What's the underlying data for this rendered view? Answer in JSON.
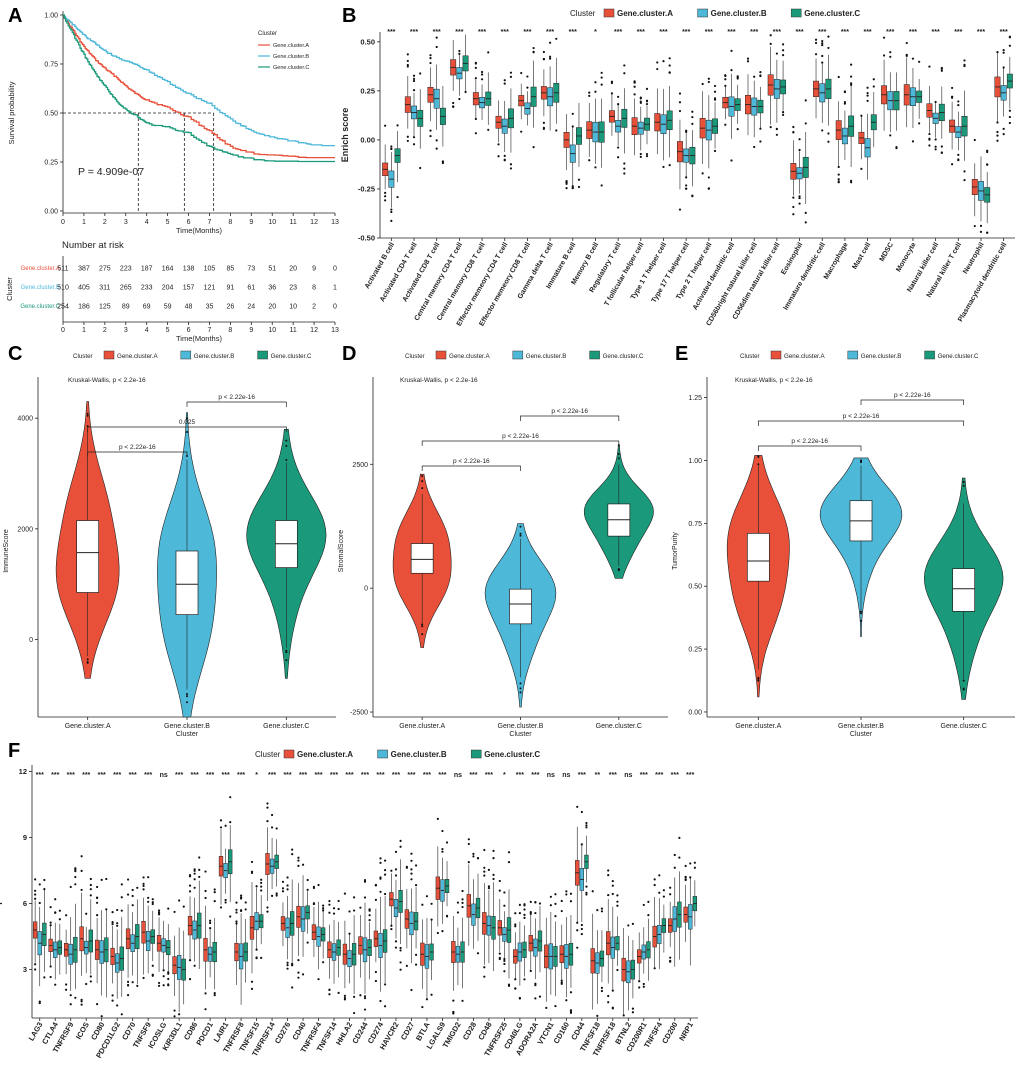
{
  "colors": {
    "A": "#e8503a",
    "B": "#4db8d8",
    "C": "#1a9a7a"
  },
  "chart_data": [
    {
      "id": "A",
      "type": "line",
      "panel_label": "A",
      "ylabel": "Survival probability",
      "xlabel": "Time(Months)",
      "xlim": [
        0,
        13
      ],
      "ylim": [
        0,
        1
      ],
      "x_ticks": [
        "0",
        "1",
        "2",
        "3",
        "4",
        "5",
        "6",
        "7",
        "8",
        "9",
        "10",
        "11",
        "12",
        "13"
      ],
      "y_ticks": [
        "0.00",
        "0.25",
        "0.50",
        "0.75",
        "1.00"
      ],
      "legend_title": "Cluster",
      "legend": [
        "Gene.cluster.A",
        "Gene.cluster.B",
        "Gene.cluster.C"
      ],
      "pvalue": "P = 4.909e-07",
      "medians": [
        5.8,
        7.2,
        3.6
      ],
      "series": [
        {
          "name": "Gene.cluster.A",
          "x": [
            0,
            0.5,
            1,
            1.5,
            2,
            2.5,
            3,
            3.5,
            4,
            5,
            6,
            7,
            8,
            9,
            10,
            11,
            12,
            13
          ],
          "y": [
            1,
            0.92,
            0.84,
            0.78,
            0.73,
            0.69,
            0.64,
            0.6,
            0.57,
            0.53,
            0.48,
            0.41,
            0.33,
            0.3,
            0.29,
            0.28,
            0.28,
            0.28
          ]
        },
        {
          "name": "Gene.cluster.B",
          "x": [
            0,
            0.5,
            1,
            1.5,
            2,
            2.5,
            3,
            3.5,
            4,
            5,
            6,
            7,
            8,
            9,
            10,
            11,
            12,
            13
          ],
          "y": [
            1,
            0.95,
            0.9,
            0.86,
            0.82,
            0.79,
            0.77,
            0.75,
            0.72,
            0.66,
            0.6,
            0.55,
            0.47,
            0.41,
            0.38,
            0.36,
            0.34,
            0.34
          ]
        },
        {
          "name": "Gene.cluster.C",
          "x": [
            0,
            0.5,
            1,
            1.5,
            2,
            2.5,
            3,
            3.5,
            4,
            5,
            6,
            7,
            8,
            9,
            10,
            11,
            12,
            13
          ],
          "y": [
            1,
            0.9,
            0.8,
            0.71,
            0.64,
            0.57,
            0.52,
            0.49,
            0.45,
            0.43,
            0.4,
            0.33,
            0.29,
            0.27,
            0.26,
            0.26,
            0.26,
            0.26
          ]
        }
      ],
      "risk_table": {
        "title": "Number at risk",
        "ylabel": "Cluster",
        "xlabel": "Time(Months)",
        "rows": [
          {
            "name": "Gene.cluster.A",
            "values": [
              "511",
              "387",
              "275",
              "223",
              "187",
              "164",
              "138",
              "105",
              "85",
              "73",
              "51",
              "20",
              "9",
              "0"
            ]
          },
          {
            "name": "Gene.cluster.B",
            "values": [
              "510",
              "405",
              "311",
              "265",
              "233",
              "204",
              "157",
              "121",
              "91",
              "61",
              "36",
              "23",
              "8",
              "1"
            ]
          },
          {
            "name": "Gene.cluster.C",
            "values": [
              "254",
              "186",
              "125",
              "89",
              "69",
              "59",
              "48",
              "35",
              "26",
              "24",
              "20",
              "10",
              "2",
              "0"
            ]
          }
        ]
      }
    },
    {
      "id": "B",
      "type": "box",
      "panel_label": "B",
      "ylabel": "Enrich score",
      "ylim": [
        -0.5,
        0.55
      ],
      "y_ticks": [
        "-0.50",
        "-0.25",
        "0.00",
        "0.25",
        "0.50"
      ],
      "y_tick_values": [
        -0.5,
        -0.25,
        0,
        0.25,
        0.5
      ],
      "legend_title": "Cluster",
      "legend": [
        "Gene.cluster.A",
        "Gene.cluster.B",
        "Gene.cluster.C"
      ],
      "categories": [
        "Activated B cell",
        "Activated CD4 T cell",
        "Activated CD8 T cell",
        "Central memory CD4 T cell",
        "Central memory CD8 T cell",
        "Effector memeory CD4 T cell",
        "Effector memeory CD8 T cell",
        "Gamma delta T cell",
        "Immature  B cell",
        "Memory B cell",
        "Regulatory T cell",
        "T follicular helper cell",
        "Type 1 T helper cell",
        "Type 17 T helper cell",
        "Type 2 T helper cell",
        "Activated dendritic cell",
        "CD56bright natural killer cell",
        "CD56dim natural killer cell",
        "Eosinophil",
        "Immature dendritic cell",
        "Macrophage",
        "Mast cell",
        "MDSC",
        "Monocyte",
        "Natural killer cell",
        "Natural killer T cell",
        "Neutrophil",
        "Plasmacytoid dendritic cell"
      ],
      "significance": [
        "***",
        "***",
        "***",
        "***",
        "***",
        "***",
        "***",
        "***",
        "***",
        "*",
        "***",
        "***",
        "***",
        "***",
        "***",
        "***",
        "***",
        "***",
        "***",
        "***",
        "***",
        "***",
        "***",
        "***",
        "***",
        "***",
        "***",
        "***"
      ],
      "medians_A": [
        -0.15,
        0.18,
        0.23,
        0.37,
        0.21,
        0.09,
        0.2,
        0.24,
        0.0,
        0.05,
        0.12,
        0.07,
        0.09,
        -0.06,
        0.06,
        0.19,
        0.18,
        0.28,
        -0.16,
        0.26,
        0.05,
        0.01,
        0.23,
        0.23,
        0.15,
        0.07,
        -0.24,
        0.27
      ],
      "medians_B": [
        -0.2,
        0.14,
        0.21,
        0.34,
        0.19,
        0.07,
        0.16,
        0.22,
        -0.07,
        0.04,
        0.07,
        0.06,
        0.08,
        -0.08,
        0.05,
        0.17,
        0.17,
        0.26,
        -0.17,
        0.24,
        0.02,
        -0.04,
        0.2,
        0.22,
        0.11,
        0.04,
        -0.26,
        0.24
      ],
      "medians_C": [
        -0.08,
        0.11,
        0.12,
        0.39,
        0.21,
        0.11,
        0.22,
        0.24,
        0.02,
        0.04,
        0.11,
        0.08,
        0.1,
        -0.08,
        0.07,
        0.18,
        0.17,
        0.27,
        -0.14,
        0.26,
        0.07,
        0.09,
        0.2,
        0.22,
        0.14,
        0.07,
        -0.28,
        0.3
      ]
    },
    {
      "id": "C",
      "type": "violin",
      "panel_label": "C",
      "ylabel": "ImmuneScore",
      "xlabel": "Cluster",
      "ylim": [
        -1400,
        4600
      ],
      "y_ticks": [
        "0",
        "2000",
        "4000"
      ],
      "y_tick_values": [
        0,
        2000,
        4000
      ],
      "legend_title": "Cluster",
      "legend": [
        "Gene.cluster.A",
        "Gene.cluster.B",
        "Gene.cluster.C"
      ],
      "categories": [
        "Gene.cluster.A",
        "Gene.cluster.B",
        "Gene.cluster.C"
      ],
      "test": "Kruskal-Wallis, p < 2.2e-16",
      "comparisons": [
        "p < 2.22e-16",
        "0.025",
        "p < 2.22e-16"
      ],
      "violins": [
        {
          "name": "Gene.cluster.A",
          "min": -700,
          "max": 4300,
          "q1": 850,
          "median": 1570,
          "q3": 2150,
          "wlo": -300,
          "whi": 3800
        },
        {
          "name": "Gene.cluster.B",
          "min": -1400,
          "max": 4100,
          "q1": 450,
          "median": 1000,
          "q3": 1600,
          "wlo": -900,
          "whi": 3250
        },
        {
          "name": "Gene.cluster.C",
          "min": -700,
          "max": 3800,
          "q1": 1300,
          "median": 1730,
          "q3": 2150,
          "wlo": -150,
          "whi": 3200
        }
      ]
    },
    {
      "id": "D",
      "type": "violin",
      "panel_label": "D",
      "ylabel": "StromalScore",
      "xlabel": "Cluster",
      "ylim": [
        -2600,
        4100
      ],
      "y_ticks": [
        "-2500",
        "0",
        "2500"
      ],
      "y_tick_values": [
        -2500,
        0,
        2500
      ],
      "legend_title": "Cluster",
      "legend": [
        "Gene.cluster.A",
        "Gene.cluster.B",
        "Gene.cluster.C"
      ],
      "categories": [
        "Gene.cluster.A",
        "Gene.cluster.B",
        "Gene.cluster.C"
      ],
      "test": "Kruskal-Wallis, p < 2.2e-16",
      "comparisons": [
        "p < 2.22e-16",
        "p < 2.22e-16",
        "p < 2.22e-16"
      ],
      "violins": [
        {
          "name": "Gene.cluster.A",
          "min": -1200,
          "max": 2300,
          "q1": 300,
          "median": 580,
          "q3": 900,
          "wlo": -700,
          "whi": 1900
        },
        {
          "name": "Gene.cluster.B",
          "min": -2400,
          "max": 1300,
          "q1": -720,
          "median": -320,
          "q3": -20,
          "wlo": -1800,
          "whi": 1000
        },
        {
          "name": "Gene.cluster.C",
          "min": 200,
          "max": 2900,
          "q1": 1050,
          "median": 1380,
          "q3": 1700,
          "wlo": 450,
          "whi": 2500
        }
      ]
    },
    {
      "id": "E",
      "type": "violin",
      "panel_label": "E",
      "ylabel": "TumorPurity",
      "xlabel": "Cluster",
      "ylim": [
        -0.02,
        1.3
      ],
      "y_ticks": [
        "0.00",
        "0.25",
        "0.50",
        "0.75",
        "1.00",
        "1.25"
      ],
      "y_tick_values": [
        0,
        0.25,
        0.5,
        0.75,
        1.0,
        1.25
      ],
      "legend_title": "Cluster",
      "legend": [
        "Gene.cluster.A",
        "Gene.cluster.B",
        "Gene.cluster.C"
      ],
      "categories": [
        "Gene.cluster.A",
        "Gene.cluster.B",
        "Gene.cluster.C"
      ],
      "test": "Kruskal-Wallis, p < 2.2e-16",
      "comparisons": [
        "p < 2.22e-16",
        "p < 2.22e-16",
        "p < 2.22e-16"
      ],
      "violins": [
        {
          "name": "Gene.cluster.A",
          "min": 0.06,
          "max": 1.02,
          "q1": 0.52,
          "median": 0.6,
          "q3": 0.71,
          "wlo": 0.17,
          "whi": 0.98
        },
        {
          "name": "Gene.cluster.B",
          "min": 0.3,
          "max": 1.01,
          "q1": 0.68,
          "median": 0.76,
          "q3": 0.84,
          "wlo": 0.4,
          "whi": 0.98
        },
        {
          "name": "Gene.cluster.C",
          "min": 0.05,
          "max": 0.93,
          "q1": 0.4,
          "median": 0.49,
          "q3": 0.57,
          "wlo": 0.13,
          "whi": 0.83
        }
      ]
    },
    {
      "id": "F",
      "type": "box",
      "panel_label": "F",
      "ylabel": "Expression",
      "ylim": [
        0.8,
        12.3
      ],
      "y_ticks": [
        "3",
        "6",
        "9",
        "12"
      ],
      "y_tick_values": [
        3,
        6,
        9,
        12
      ],
      "legend_title": "Cluster",
      "legend": [
        "Gene.cluster.A",
        "Gene.cluster.B",
        "Gene.cluster.C"
      ],
      "categories": [
        "LAG3",
        "CTLA4",
        "TNFRSF9",
        "ICOS",
        "CD80",
        "PDCD1LG2",
        "CD70",
        "TNFSF9",
        "ICOSLG",
        "KIR3DL1",
        "CD86",
        "PDCD1",
        "LAIR1",
        "TNFRSF8",
        "TNFSF15",
        "TNFRSF14",
        "CD276",
        "CD40",
        "TNFRSF4",
        "TNFSF14",
        "HHLA2",
        "CD244",
        "CD274",
        "HAVCR2",
        "CD27",
        "BTLA",
        "LGALS9",
        "TMIGD2",
        "CD28",
        "CD48",
        "TNFRSF25",
        "CD40LG",
        "ADORA2A",
        "VTCN1",
        "CD160",
        "CD44",
        "TNFSF18",
        "TNFRSF18",
        "BTNL2",
        "CD200R1",
        "TNFSF4",
        "CD200",
        "NRP1"
      ],
      "significance": [
        "***",
        "***",
        "***",
        "***",
        "***",
        "***",
        "***",
        "***",
        "ns",
        "***",
        "***",
        "***",
        "***",
        "***",
        "*",
        "***",
        "***",
        "***",
        "***",
        "***",
        "***",
        "***",
        "***",
        "***",
        "***",
        "***",
        "***",
        "ns",
        "***",
        "***",
        "*",
        "***",
        "***",
        "ns",
        "ns",
        "***",
        "**",
        "***",
        "ns",
        "***",
        "***",
        "***",
        "***"
      ],
      "medians_A": [
        4.8,
        4.1,
        3.9,
        4.4,
        3.9,
        3.6,
        4.4,
        4.7,
        4.2,
        3.2,
        5.0,
        3.9,
        7.7,
        3.8,
        4.9,
        7.8,
        5.1,
        5.4,
        4.7,
        3.9,
        3.7,
        4.1,
        4.4,
        6.2,
        5.3,
        3.7,
        6.7,
        3.8,
        5.9,
        5.1,
        4.9,
        3.6,
        4.2,
        3.6,
        3.7,
        7.4,
        3.4,
        4.2,
        3.0,
        3.6,
        4.5,
        5.0,
        5.5
      ],
      "medians_B": [
        4.2,
        3.9,
        3.7,
        4.0,
        3.8,
        3.3,
        4.2,
        4.3,
        4.1,
        3.1,
        4.8,
        3.7,
        7.5,
        3.6,
        5.2,
        7.7,
        4.9,
        5.3,
        4.5,
        3.8,
        3.5,
        3.9,
        4.1,
        5.8,
        5.1,
        3.6,
        6.6,
        3.7,
        5.5,
        5.0,
        4.6,
        3.8,
        4.0,
        3.6,
        3.6,
        7.1,
        3.3,
        4.0,
        2.9,
        3.8,
        4.6,
        5.3,
        5.4
      ],
      "medians_C": [
        4.6,
        4.0,
        3.9,
        4.3,
        3.9,
        3.5,
        4.5,
        4.5,
        4.0,
        3.0,
        5.0,
        3.8,
        7.9,
        3.8,
        5.2,
        7.9,
        5.1,
        5.6,
        4.6,
        4.0,
        3.7,
        4.0,
        4.3,
        6.1,
        5.2,
        3.8,
        6.8,
        3.8,
        5.8,
        4.9,
        4.8,
        3.9,
        4.3,
        3.6,
        3.7,
        7.9,
        3.5,
        4.2,
        3.0,
        3.9,
        5.0,
        5.5,
        6.0
      ]
    }
  ]
}
